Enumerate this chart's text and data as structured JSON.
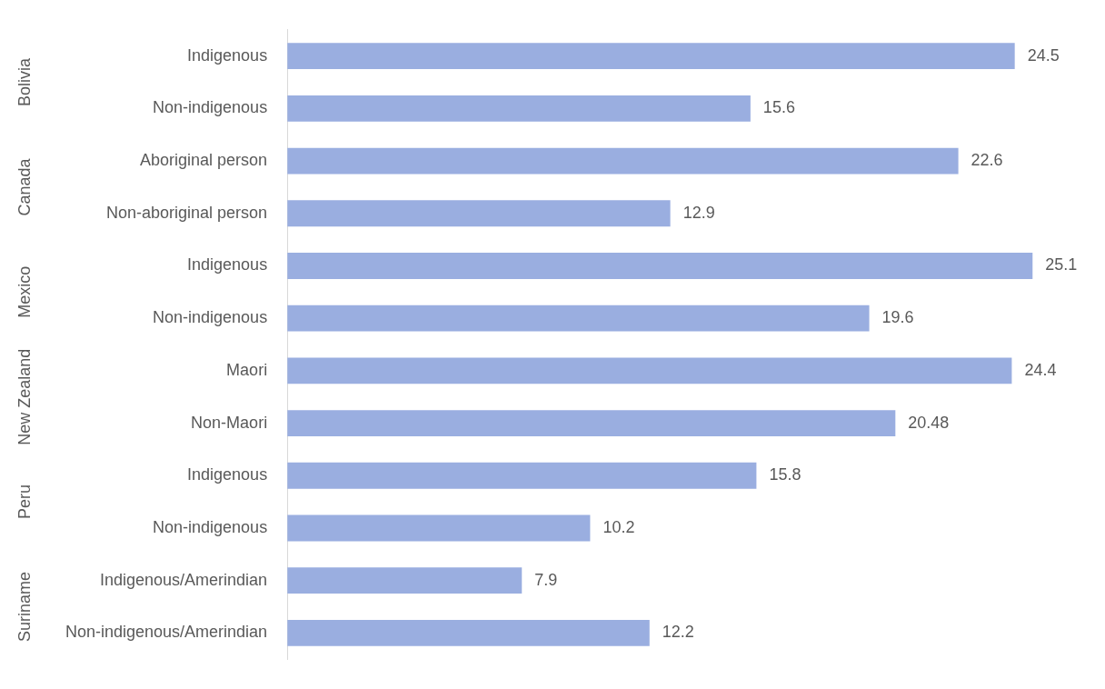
{
  "chart_data": {
    "type": "bar",
    "orientation": "horizontal",
    "categories": [
      "Indigenous",
      "Non-indigenous",
      "Aboriginal person",
      "Non-aboriginal person",
      "Indigenous",
      "Non-indigenous",
      "Maori",
      "Non-Maori",
      "Indigenous",
      "Non-indigenous",
      "Indigenous/Amerindian",
      "Non-indigenous/Amerindian"
    ],
    "values": [
      24.5,
      15.6,
      22.6,
      12.9,
      25.1,
      19.6,
      24.4,
      20.48,
      15.8,
      10.2,
      7.9,
      12.2
    ],
    "color": "#9aaee0",
    "data_labels": true,
    "grid": false,
    "legend": false,
    "annotations": [
      "Bolivia",
      "Canada",
      "Mexico",
      "New Zealand",
      "Peru",
      "Suriname"
    ]
  }
}
